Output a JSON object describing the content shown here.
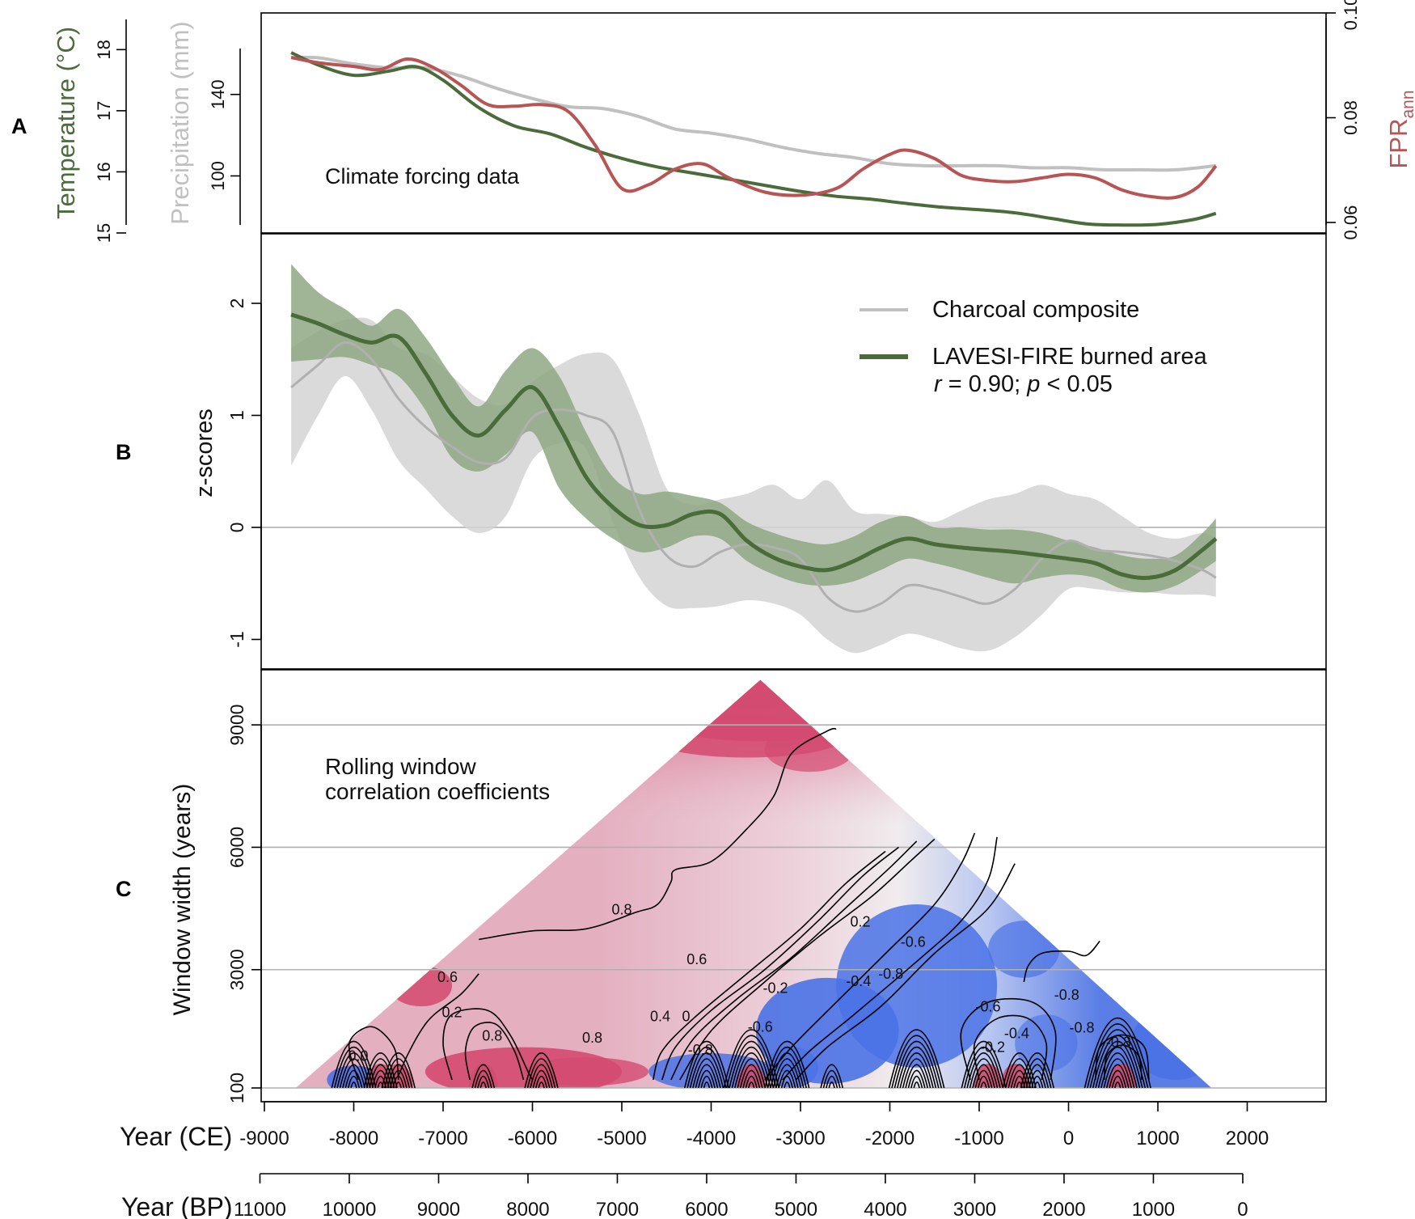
{
  "chart_data": [
    {
      "panel": "A",
      "type": "line",
      "annotation": "Climate forcing data",
      "axis_left_outer": {
        "label": "Temperature (°C)",
        "ticks": [
          "15",
          "16",
          "17",
          "18"
        ],
        "range": [
          15,
          18.6
        ]
      },
      "axis_left_inner": {
        "label": "Precipitation (mm)",
        "ticks": [
          "100",
          "140"
        ],
        "range": [
          72,
          180
        ]
      },
      "axis_right": {
        "label_main": "FPR",
        "label_sub": "ann",
        "ticks": [
          "0.06",
          "0.08",
          "0.10"
        ],
        "range": [
          0.058,
          0.1
        ]
      },
      "series": [
        {
          "name": "Temperature",
          "color": "#4a6b3a",
          "x": [
            -8700,
            -8400,
            -8000,
            -7600,
            -7300,
            -7000,
            -6600,
            -6200,
            -5800,
            -5400,
            -5000,
            -4600,
            -4200,
            -3800,
            -3400,
            -3000,
            -2600,
            -2200,
            -1800,
            -1400,
            -1000,
            -600,
            -200,
            200,
            600,
            1000,
            1400,
            1650
          ],
          "y": [
            17.95,
            17.75,
            17.58,
            17.65,
            17.72,
            17.5,
            17.05,
            16.75,
            16.62,
            16.4,
            16.22,
            16.08,
            15.98,
            15.88,
            15.78,
            15.68,
            15.6,
            15.55,
            15.48,
            15.42,
            15.38,
            15.33,
            15.24,
            15.15,
            15.13,
            15.14,
            15.22,
            15.32
          ]
        },
        {
          "name": "Precipitation",
          "color": "#c0c0c0",
          "x": [
            -8700,
            -8400,
            -8000,
            -7600,
            -7200,
            -6800,
            -6400,
            -6000,
            -5600,
            -5200,
            -4800,
            -4400,
            -4000,
            -3600,
            -3200,
            -2800,
            -2400,
            -2000,
            -1600,
            -1200,
            -800,
            -400,
            0,
            400,
            800,
            1200,
            1650
          ],
          "y": [
            158,
            158,
            155,
            153,
            153,
            149,
            143,
            138,
            134,
            133,
            129,
            123,
            121,
            118,
            114,
            111,
            109,
            106,
            105,
            105,
            105,
            104,
            104,
            103,
            103,
            103,
            105
          ]
        },
        {
          "name": "FPRann",
          "color": "#b85454",
          "x": [
            -8700,
            -8400,
            -8000,
            -7700,
            -7400,
            -7100,
            -6800,
            -6500,
            -6200,
            -5900,
            -5600,
            -5300,
            -5000,
            -4700,
            -4400,
            -4100,
            -3800,
            -3400,
            -3000,
            -2600,
            -2300,
            -2000,
            -1800,
            -1500,
            -1200,
            -900,
            -600,
            -300,
            0,
            300,
            600,
            900,
            1200,
            1450,
            1650
          ],
          "y": [
            0.0915,
            0.0905,
            0.0898,
            0.0892,
            0.0912,
            0.0895,
            0.0862,
            0.0825,
            0.0822,
            0.0825,
            0.0812,
            0.0748,
            0.0665,
            0.0672,
            0.0702,
            0.0712,
            0.0685,
            0.0658,
            0.0652,
            0.0665,
            0.0702,
            0.073,
            0.0738,
            0.0722,
            0.069,
            0.068,
            0.0678,
            0.0685,
            0.0692,
            0.0685,
            0.0662,
            0.065,
            0.0648,
            0.0668,
            0.0708
          ]
        }
      ]
    },
    {
      "panel": "B",
      "type": "area",
      "ylabel": "z-scores",
      "ticks": [
        "-1",
        "0",
        "1",
        "2"
      ],
      "ylim": [
        -1.25,
        2.6
      ],
      "legend": {
        "charcoal_label": "Charcoal composite",
        "lavesi_label": "LAVESI-FIRE burned area",
        "stats_r": "r",
        "stats_mid": " = 0.90; ",
        "stats_p": "p",
        "stats_end": " < 0.05"
      },
      "series": [
        {
          "name": "Charcoal composite",
          "color": "#b0b0b0",
          "band_color": "#d4d4d4",
          "x": [
            -8700,
            -8400,
            -8100,
            -7800,
            -7500,
            -7200,
            -6900,
            -6600,
            -6300,
            -6000,
            -5700,
            -5400,
            -5100,
            -4800,
            -4500,
            -4200,
            -3900,
            -3600,
            -3300,
            -3000,
            -2700,
            -2400,
            -2100,
            -1800,
            -1500,
            -1200,
            -900,
            -600,
            -300,
            0,
            300,
            600,
            900,
            1200,
            1500,
            1650
          ],
          "mean": [
            1.25,
            1.45,
            1.65,
            1.5,
            1.15,
            0.9,
            0.72,
            0.58,
            0.62,
            0.98,
            1.05,
            1.0,
            0.85,
            0.15,
            -0.25,
            -0.35,
            -0.22,
            -0.15,
            -0.18,
            -0.28,
            -0.62,
            -0.75,
            -0.68,
            -0.52,
            -0.55,
            -0.62,
            -0.68,
            -0.55,
            -0.28,
            -0.12,
            -0.2,
            -0.22,
            -0.25,
            -0.3,
            -0.38,
            -0.45
          ],
          "upper": [
            1.6,
            1.75,
            1.85,
            1.85,
            1.6,
            1.55,
            1.35,
            1.15,
            1.1,
            1.3,
            1.45,
            1.55,
            1.5,
            1.0,
            0.35,
            0.2,
            0.25,
            0.3,
            0.38,
            0.25,
            0.42,
            0.15,
            0.12,
            0.1,
            0.05,
            0.15,
            0.25,
            0.3,
            0.38,
            0.3,
            0.25,
            0.1,
            -0.05,
            -0.1,
            -0.05,
            -0.1
          ],
          "lower": [
            0.55,
            1.0,
            1.35,
            1.05,
            0.6,
            0.35,
            0.1,
            -0.05,
            0.1,
            0.6,
            0.75,
            0.7,
            0.05,
            -0.45,
            -0.7,
            -0.72,
            -0.7,
            -0.65,
            -0.68,
            -0.78,
            -1.0,
            -1.12,
            -1.05,
            -0.95,
            -1.0,
            -1.08,
            -1.1,
            -0.98,
            -0.78,
            -0.55,
            -0.55,
            -0.58,
            -0.58,
            -0.6,
            -0.6,
            -0.62
          ]
        },
        {
          "name": "LAVESI-FIRE burned area",
          "color": "#4a6b3a",
          "band_color": "#8aa57e",
          "x": [
            -8700,
            -8400,
            -8100,
            -7800,
            -7500,
            -7200,
            -6900,
            -6600,
            -6300,
            -6000,
            -5700,
            -5400,
            -5100,
            -4800,
            -4500,
            -4200,
            -3900,
            -3600,
            -3300,
            -3000,
            -2700,
            -2400,
            -2100,
            -1800,
            -1500,
            -1200,
            -900,
            -600,
            -300,
            0,
            300,
            600,
            900,
            1200,
            1500,
            1650
          ],
          "mean": [
            1.9,
            1.82,
            1.72,
            1.65,
            1.7,
            1.38,
            1.0,
            0.82,
            1.05,
            1.25,
            0.9,
            0.45,
            0.18,
            0.02,
            0.02,
            0.12,
            0.12,
            -0.12,
            -0.27,
            -0.35,
            -0.38,
            -0.3,
            -0.18,
            -0.1,
            -0.15,
            -0.18,
            -0.2,
            -0.22,
            -0.25,
            -0.28,
            -0.32,
            -0.42,
            -0.45,
            -0.38,
            -0.2,
            -0.1
          ],
          "upper": [
            2.35,
            2.1,
            1.95,
            1.8,
            1.95,
            1.7,
            1.35,
            1.08,
            1.4,
            1.6,
            1.35,
            0.85,
            0.45,
            0.3,
            0.32,
            0.28,
            0.22,
            0.05,
            -0.05,
            -0.12,
            -0.15,
            -0.08,
            0.05,
            0.1,
            0.0,
            0.0,
            -0.02,
            -0.02,
            -0.05,
            -0.12,
            -0.18,
            -0.25,
            -0.28,
            -0.25,
            -0.05,
            0.08
          ],
          "lower": [
            1.48,
            1.5,
            1.52,
            1.45,
            1.35,
            1.05,
            0.62,
            0.5,
            0.65,
            0.85,
            0.35,
            0.08,
            -0.1,
            -0.22,
            -0.18,
            -0.08,
            -0.1,
            -0.3,
            -0.42,
            -0.5,
            -0.52,
            -0.48,
            -0.38,
            -0.28,
            -0.32,
            -0.38,
            -0.45,
            -0.5,
            -0.45,
            -0.42,
            -0.45,
            -0.55,
            -0.58,
            -0.52,
            -0.38,
            -0.3
          ]
        }
      ]
    },
    {
      "panel": "C",
      "type": "heatmap",
      "ylabel": "Window width (years)",
      "ticks": [
        "100",
        "3000",
        "6000",
        "9000"
      ],
      "ylim": [
        100,
        10200
      ],
      "gridlines": [
        3000,
        6000,
        9000
      ],
      "annotation_line1": "Rolling window",
      "annotation_line2": "correlation coefficients",
      "triangle": {
        "x_left": -8650,
        "x_apex": -3450,
        "x_right": 1600,
        "apex_width": 10100
      },
      "color_scale": {
        "positive": "#d44a70",
        "neutral": "#f2f2f2",
        "negative": "#4a72e6"
      },
      "contour_labels": [
        {
          "text": "0.8",
          "x": -5000,
          "w": 4470
        },
        {
          "text": "0.6",
          "x": -6950,
          "w": 2820
        },
        {
          "text": "0.2",
          "x": -6900,
          "w": 1950
        },
        {
          "text": "0.8",
          "x": -6450,
          "w": 1380
        },
        {
          "text": "0.8",
          "x": -5330,
          "w": 1330
        },
        {
          "text": "0.6",
          "x": -4160,
          "w": 3250
        },
        {
          "text": "0.4",
          "x": -4570,
          "w": 1850
        },
        {
          "text": "0",
          "x": -4280,
          "w": 1850
        },
        {
          "text": "-0.8",
          "x": -4120,
          "w": 1030
        },
        {
          "text": "-0.6",
          "x": -3450,
          "w": 1600
        },
        {
          "text": "-0.2",
          "x": -3280,
          "w": 2550
        },
        {
          "text": "0.2",
          "x": -2330,
          "w": 4170
        },
        {
          "text": "-0.4",
          "x": -2350,
          "w": 2720
        },
        {
          "text": "-0.6",
          "x": -1740,
          "w": 3680
        },
        {
          "text": "-0.8",
          "x": -1990,
          "w": 2900
        },
        {
          "text": "-0.6",
          "x": -900,
          "w": 2090
        },
        {
          "text": "-0.8",
          "x": -20,
          "w": 2380
        },
        {
          "text": "-0.4",
          "x": -580,
          "w": 1440
        },
        {
          "text": "-0.2",
          "x": -850,
          "w": 1100
        },
        {
          "text": "-0.8",
          "x": 150,
          "w": 1580
        },
        {
          "text": "-0.8",
          "x": 560,
          "w": 1220
        },
        {
          "text": "0.0",
          "x": -7950,
          "w": 880
        }
      ]
    }
  ],
  "axes": {
    "ce": {
      "label": "Year (CE)",
      "ticks": [
        -9000,
        -8000,
        -7000,
        -6000,
        -5000,
        -4000,
        -3000,
        -2000,
        -1000,
        0,
        1000,
        2000
      ]
    },
    "bp": {
      "label": "Year (BP)",
      "ticks": [
        11000,
        10000,
        9000,
        8000,
        7000,
        6000,
        5000,
        4000,
        3000,
        2000,
        1000,
        0
      ]
    }
  },
  "panel_labels": {
    "a": "A",
    "b": "B",
    "c": "C"
  }
}
